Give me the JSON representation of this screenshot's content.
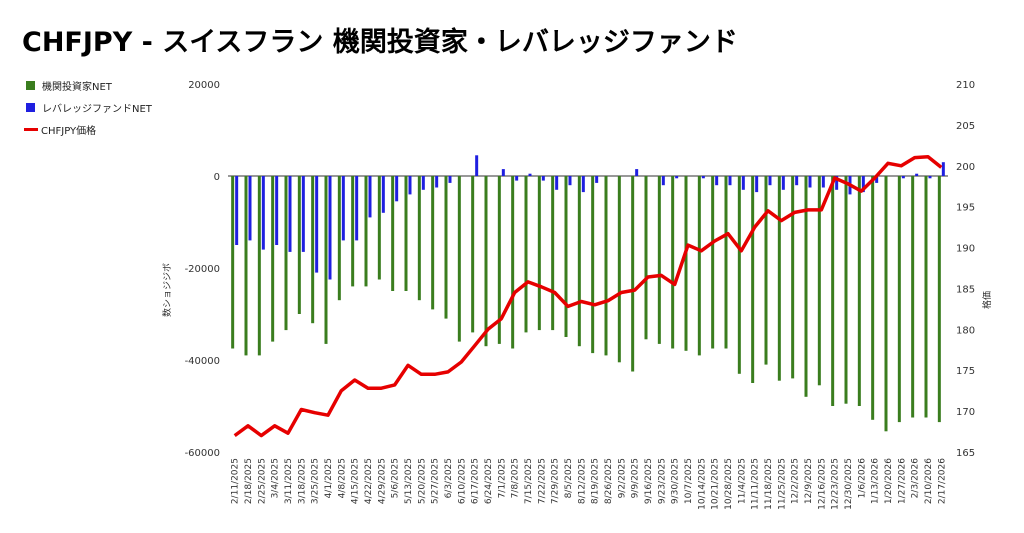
{
  "title": "CHFJPY - スイスフラン 機関投資家・レバレッジファンド",
  "chart_data": {
    "type": "bar",
    "ylabel": "数ショジジボ",
    "y2label": "格価",
    "ylim": [
      -60000,
      20000
    ],
    "y2lim": [
      165,
      210
    ],
    "yticks": [
      "20000",
      "0",
      "-20000",
      "-40000",
      "-60000"
    ],
    "y2ticks": [
      "210",
      "205",
      "200",
      "195",
      "190",
      "185",
      "180",
      "175",
      "170",
      "165"
    ],
    "legend_position": "left",
    "grid": false,
    "colors": {
      "institutional": "#3a7d1e",
      "leveraged": "#1f1fe0",
      "price": "#e60000"
    },
    "x": [
      "2/11/2025",
      "2/18/2025",
      "2/25/2025",
      "3/4/2025",
      "3/11/2025",
      "3/18/2025",
      "3/25/2025",
      "4/1/2025",
      "4/8/2025",
      "4/15/2025",
      "4/22/2025",
      "4/29/2025",
      "5/6/2025",
      "5/13/2025",
      "5/20/2025",
      "5/27/2025",
      "6/3/2025",
      "6/10/2025",
      "6/17/2025",
      "6/24/2025",
      "7/1/2025",
      "7/8/2025",
      "7/15/2025",
      "7/22/2025",
      "7/29/2025",
      "8/5/2025",
      "8/12/2025",
      "8/19/2025",
      "8/26/2025",
      "9/2/2025",
      "9/9/2025",
      "9/16/2025",
      "9/23/2025",
      "9/30/2025",
      "10/7/2025",
      "10/14/2025",
      "10/21/2025",
      "10/28/2025",
      "11/4/2025",
      "11/11/2025",
      "11/18/2025",
      "11/25/2025",
      "12/2/2025",
      "12/9/2025",
      "12/16/2025",
      "12/23/2025",
      "12/30/2025",
      "1/6/2026",
      "1/13/2026",
      "1/20/2026",
      "1/27/2026",
      "2/3/2026",
      "2/10/2026",
      "2/17/2026"
    ],
    "series": [
      {
        "name": "機関投資家NET",
        "values": [
          -37500,
          -39000,
          -39000,
          -36000,
          -33500,
          -30000,
          -32000,
          -36500,
          -27000,
          -24000,
          -24000,
          -22500,
          -25000,
          -25000,
          -27000,
          -29000,
          -31000,
          -36000,
          -34000,
          -37000,
          -36500,
          -37500,
          -34000,
          -33500,
          -33500,
          -35000,
          -37000,
          -38500,
          -39000,
          -40500,
          -42500,
          -35500,
          -36500,
          -37500,
          -38000,
          -39000,
          -37500,
          -37500,
          -43000,
          -45000,
          -41000,
          -44500,
          -44000,
          -48000,
          -45500,
          -50000,
          -49500,
          -50000,
          -53000,
          -55500,
          -53500,
          -52500,
          -52500,
          -53500
        ]
      },
      {
        "name": "レバレッジファンドNET",
        "values": [
          -15000,
          -14000,
          -16000,
          -15000,
          -16500,
          -16500,
          -21000,
          -22500,
          -14000,
          -14000,
          -9000,
          -8000,
          -5500,
          -4000,
          -3000,
          -2500,
          -1500,
          0,
          4500,
          0,
          1500,
          -1000,
          500,
          -1000,
          -3000,
          -2000,
          -3500,
          -1500,
          0,
          0,
          1500,
          0,
          -2000,
          -500,
          0,
          -500,
          -2000,
          -2000,
          -3000,
          -3500,
          -2000,
          -3000,
          -2000,
          -2500,
          -2500,
          -3000,
          -4000,
          -3500,
          -1500,
          0,
          -500,
          500,
          -500,
          3000
        ]
      },
      {
        "name": "CHFJPY価格",
        "values": [
          167.0,
          168.2,
          167.0,
          168.2,
          167.3,
          170.2,
          169.8,
          169.5,
          172.5,
          173.8,
          172.8,
          172.8,
          173.2,
          175.6,
          174.5,
          174.5,
          174.8,
          176.0,
          178.0,
          180.0,
          181.3,
          184.5,
          185.8,
          185.2,
          184.5,
          182.8,
          183.4,
          183.0,
          183.5,
          184.5,
          184.8,
          186.4,
          186.6,
          185.5,
          190.3,
          189.6,
          190.8,
          191.7,
          189.6,
          192.5,
          194.5,
          193.3,
          194.3,
          194.6,
          194.6,
          198.5,
          197.8,
          196.9,
          198.5,
          200.3,
          200.0,
          201.0,
          201.1,
          199.8
        ]
      }
    ]
  }
}
